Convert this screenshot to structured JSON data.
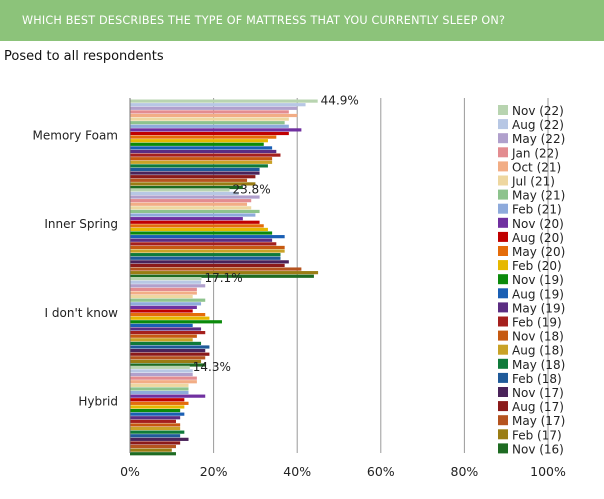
{
  "header": {
    "title": "WHICH BEST DESCRIBES THE TYPE OF MATTRESS THAT YOU CURRENTLY SLEEP ON?"
  },
  "subtitle": "Posed to all respondents",
  "chart_data": {
    "type": "bar",
    "orientation": "horizontal",
    "title": "WHICH BEST DESCRIBES THE TYPE OF MATTRESS THAT YOU CURRENTLY SLEEP ON?",
    "subtitle": "Posed to all respondents",
    "categories": [
      "Memory Foam",
      "Inner Spring",
      "I don't know",
      "Hybrid"
    ],
    "xlim": [
      0,
      100
    ],
    "x_ticks": [
      "0%",
      "20%",
      "40%",
      "60%",
      "80%",
      "100%"
    ],
    "grid": true,
    "legend_position": "right",
    "data_labels": [
      "44.9%",
      "23.8%",
      "17.1%",
      "14.3%"
    ],
    "series": [
      {
        "name": "Nov (22)",
        "color": "#b8d4b0",
        "values": [
          44.9,
          23.8,
          17.1,
          14.3
        ]
      },
      {
        "name": "Aug (22)",
        "color": "#b7c7e4",
        "values": [
          42,
          26,
          17,
          15
        ]
      },
      {
        "name": "May (22)",
        "color": "#b0a0cc",
        "values": [
          40,
          31,
          18,
          15
        ]
      },
      {
        "name": "Jan (22)",
        "color": "#e38c90",
        "values": [
          38,
          29,
          16,
          16
        ]
      },
      {
        "name": "Oct (21)",
        "color": "#f2ad85",
        "values": [
          40,
          28,
          16,
          16
        ]
      },
      {
        "name": "Jul (21)",
        "color": "#eed7a0",
        "values": [
          38,
          29,
          15,
          14
        ]
      },
      {
        "name": "May (21)",
        "color": "#8dc38d",
        "values": [
          37,
          31,
          18,
          14
        ]
      },
      {
        "name": "Feb (21)",
        "color": "#8eaadb",
        "values": [
          38,
          30,
          17,
          14
        ]
      },
      {
        "name": "Nov (20)",
        "color": "#7030a0",
        "values": [
          41,
          27,
          16,
          18
        ]
      },
      {
        "name": "Aug (20)",
        "color": "#c00000",
        "values": [
          38,
          31,
          15,
          13
        ]
      },
      {
        "name": "May (20)",
        "color": "#e46c0a",
        "values": [
          35,
          32,
          18,
          14
        ]
      },
      {
        "name": "Feb (20)",
        "color": "#e6b800",
        "values": [
          33,
          33,
          19,
          13
        ]
      },
      {
        "name": "Nov (19)",
        "color": "#0b8a0b",
        "values": [
          32,
          34,
          22,
          12
        ]
      },
      {
        "name": "Aug (19)",
        "color": "#1a5fb4",
        "values": [
          34,
          37,
          15,
          13
        ]
      },
      {
        "name": "May (19)",
        "color": "#5b2d82",
        "values": [
          35,
          34,
          17,
          12
        ]
      },
      {
        "name": "Feb (19)",
        "color": "#a5201d",
        "values": [
          36,
          35,
          18,
          11
        ]
      },
      {
        "name": "Nov (18)",
        "color": "#c65911",
        "values": [
          34,
          37,
          16,
          12
        ]
      },
      {
        "name": "Aug (18)",
        "color": "#c9a227",
        "values": [
          34,
          37,
          15,
          12
        ]
      },
      {
        "name": "May (18)",
        "color": "#0f7a3a",
        "values": [
          33,
          36,
          17,
          13
        ]
      },
      {
        "name": "Feb (18)",
        "color": "#1f5a99",
        "values": [
          31,
          36,
          19,
          12
        ]
      },
      {
        "name": "Nov (17)",
        "color": "#4a235a",
        "values": [
          31,
          38,
          18,
          14
        ]
      },
      {
        "name": "Aug (17)",
        "color": "#8b1a1a",
        "values": [
          30,
          37,
          19,
          12
        ]
      },
      {
        "name": "May (17)",
        "color": "#b5531f",
        "values": [
          28,
          41,
          18,
          11
        ]
      },
      {
        "name": "Feb (17)",
        "color": "#9a7d14",
        "values": [
          30,
          45,
          17,
          10
        ]
      },
      {
        "name": "Nov (16)",
        "color": "#1e6b22",
        "values": [
          27,
          44,
          18,
          11
        ]
      }
    ]
  }
}
